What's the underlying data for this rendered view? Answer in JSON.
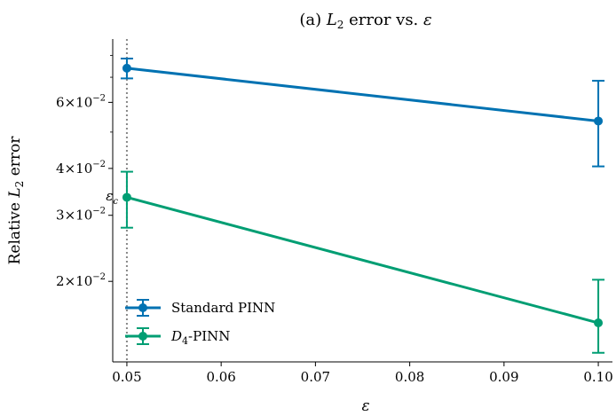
{
  "chart_data": {
    "type": "line",
    "title_prefix": "(a) ",
    "title_var": "L",
    "title_sub": "2",
    "title_suffix": " error vs. ",
    "title_symbol": "ε",
    "xlabel": "ε",
    "ylabel_prefix": "Relative ",
    "ylabel_var": "L",
    "ylabel_sub": "2",
    "ylabel_suffix": " error",
    "xlim": [
      0.0485,
      0.1015
    ],
    "ylim": [
      0.0122,
      0.0885
    ],
    "yscale": "log",
    "xticks": [
      0.05,
      0.06,
      0.07,
      0.08,
      0.09,
      0.1
    ],
    "xtick_labels": [
      "0.05",
      "0.06",
      "0.07",
      "0.08",
      "0.09",
      "0.10"
    ],
    "yticks": [
      {
        "value": 0.06,
        "mant": "6",
        "exp": "−2"
      },
      {
        "value": 0.04,
        "mant": "4",
        "exp": "−2"
      },
      {
        "value": 0.03,
        "mant": "3",
        "exp": "−2"
      },
      {
        "value": 0.02,
        "mant": "2",
        "exp": "−2"
      }
    ],
    "x": [
      0.05,
      0.1
    ],
    "vline": {
      "x": 0.05,
      "label": "ε",
      "label_sub": "c"
    },
    "series": [
      {
        "name": "Standard PINN",
        "color": "#0072b2",
        "values": [
          0.074,
          0.0535
        ],
        "err_low": [
          0.0695,
          0.0405
        ],
        "err_high": [
          0.0785,
          0.0685
        ]
      },
      {
        "name": "D4-PINN",
        "name_var": "D",
        "name_sub": "4",
        "name_rest": "-PINN",
        "color": "#009e73",
        "values": [
          0.0335,
          0.0155
        ],
        "err_low": [
          0.0278,
          0.0129
        ],
        "err_high": [
          0.0392,
          0.0202
        ]
      }
    ],
    "grid": false,
    "legend_position": "lower-left"
  }
}
